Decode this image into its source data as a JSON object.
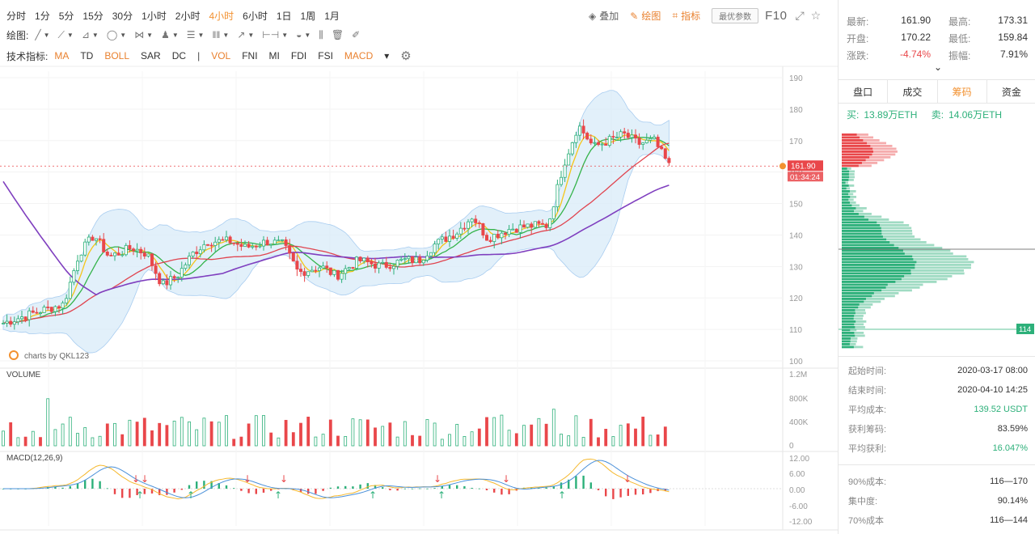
{
  "periods": [
    {
      "label": "分时",
      "active": false
    },
    {
      "label": "1分",
      "active": false
    },
    {
      "label": "5分",
      "active": false
    },
    {
      "label": "15分",
      "active": false
    },
    {
      "label": "30分",
      "active": false
    },
    {
      "label": "1小时",
      "active": false
    },
    {
      "label": "2小时",
      "active": false
    },
    {
      "label": "4小时",
      "active": true
    },
    {
      "label": "6小时",
      "active": false
    },
    {
      "label": "1日",
      "active": false
    },
    {
      "label": "1周",
      "active": false
    },
    {
      "label": "1月",
      "active": false
    }
  ],
  "actions": {
    "overlay": "叠加",
    "draw": "绘图",
    "indicator": "指标",
    "params": "最优参数",
    "f10": "F10"
  },
  "draw_toolbar": {
    "label": "绘图:",
    "tools": [
      "line-tool-icon",
      "ray-tool-icon",
      "channel-tool-icon",
      "circle-tool-icon",
      "fib-tool-icon",
      "pattern-tool-icon",
      "text-tool-icon",
      "bars-tool-icon",
      "arrow-tool-icon",
      "range-tool-icon",
      "note-tool-icon",
      "chart-tool-icon",
      "trash-icon",
      "pen-icon"
    ]
  },
  "indicators_bar": {
    "label": "技术指标:",
    "main": [
      "MA",
      "TD",
      "BOLL",
      "SAR",
      "DC"
    ],
    "sub": [
      "VOL",
      "FNI",
      "MI",
      "FDI",
      "FSI",
      "MACD"
    ],
    "highlighted": [
      "MA",
      "BOLL",
      "VOL",
      "MACD"
    ]
  },
  "watermark": "charts by QKL123",
  "price_axis_ticks": [
    "190",
    "180",
    "170",
    "160",
    "150",
    "140",
    "130",
    "120",
    "110",
    "100"
  ],
  "price_tag": {
    "price": "161.90",
    "countdown": "01:34:24"
  },
  "volume": {
    "label": "VOLUME",
    "ticks": [
      "1.2M",
      "800K",
      "400K",
      "0"
    ]
  },
  "macd": {
    "label": "MACD(12,26,9)",
    "ticks": [
      "12.00",
      "6.00",
      "0.00",
      "-6.00",
      "-12.00"
    ]
  },
  "chip_price_label": "114",
  "colors": {
    "up": "#e9474a",
    "down": "#2db07a",
    "accent": "#f29130",
    "ma_yellow": "#f5c518",
    "ma_green": "#34b34a",
    "ma_red": "#e0444f",
    "ma_purple": "#7f3fbf",
    "boll_fill": "#d6e9f8"
  },
  "chart_data": {
    "type": "candlestick",
    "price_range": [
      100,
      190
    ],
    "price_samples": [
      {
        "x": 0.0,
        "y": 112
      },
      {
        "x": 0.05,
        "y": 116
      },
      {
        "x": 0.08,
        "y": 118
      },
      {
        "x": 0.1,
        "y": 134
      },
      {
        "x": 0.12,
        "y": 140
      },
      {
        "x": 0.14,
        "y": 133
      },
      {
        "x": 0.17,
        "y": 136
      },
      {
        "x": 0.19,
        "y": 134
      },
      {
        "x": 0.21,
        "y": 124
      },
      {
        "x": 0.23,
        "y": 127
      },
      {
        "x": 0.25,
        "y": 134
      },
      {
        "x": 0.27,
        "y": 138
      },
      {
        "x": 0.3,
        "y": 138
      },
      {
        "x": 0.32,
        "y": 136
      },
      {
        "x": 0.35,
        "y": 138
      },
      {
        "x": 0.37,
        "y": 137
      },
      {
        "x": 0.39,
        "y": 128
      },
      {
        "x": 0.42,
        "y": 130
      },
      {
        "x": 0.44,
        "y": 127
      },
      {
        "x": 0.47,
        "y": 132
      },
      {
        "x": 0.5,
        "y": 130
      },
      {
        "x": 0.53,
        "y": 132
      },
      {
        "x": 0.55,
        "y": 132
      },
      {
        "x": 0.57,
        "y": 137
      },
      {
        "x": 0.6,
        "y": 141
      },
      {
        "x": 0.62,
        "y": 146
      },
      {
        "x": 0.64,
        "y": 139
      },
      {
        "x": 0.67,
        "y": 142
      },
      {
        "x": 0.7,
        "y": 143
      },
      {
        "x": 0.72,
        "y": 143
      },
      {
        "x": 0.74,
        "y": 162
      },
      {
        "x": 0.76,
        "y": 175
      },
      {
        "x": 0.78,
        "y": 168
      },
      {
        "x": 0.8,
        "y": 170
      },
      {
        "x": 0.82,
        "y": 172
      },
      {
        "x": 0.84,
        "y": 169
      },
      {
        "x": 0.86,
        "y": 170
      },
      {
        "x": 0.88,
        "y": 162
      }
    ],
    "current_price": 161.9
  },
  "stats": [
    [
      {
        "k": "最新:",
        "v": "161.90",
        "red": false
      },
      {
        "k": "最高:",
        "v": "173.31",
        "red": false
      }
    ],
    [
      {
        "k": "开盘:",
        "v": "170.22",
        "red": false
      },
      {
        "k": "最低:",
        "v": "159.84",
        "red": false
      }
    ],
    [
      {
        "k": "涨跌:",
        "v": "-4.74%",
        "red": true
      },
      {
        "k": "振幅:",
        "v": "7.91%",
        "red": false
      }
    ]
  ],
  "tabs": [
    {
      "label": "盘口",
      "active": false
    },
    {
      "label": "成交",
      "active": false
    },
    {
      "label": "筹码",
      "active": true
    },
    {
      "label": "资金",
      "active": false
    }
  ],
  "buysell": {
    "buy_label": "买:",
    "buy_value": "13.89万ETH",
    "sell_label": "卖:",
    "sell_value": "14.06万ETH"
  },
  "cost_info": [
    {
      "k": "起始时间:",
      "v": "2020-03-17 08:00",
      "green": false
    },
    {
      "k": "结束时间:",
      "v": "2020-04-10 14:25",
      "green": false
    },
    {
      "k": "平均成本:",
      "v": "139.52 USDT",
      "green": true
    },
    {
      "k": "获利筹码:",
      "v": "83.59%",
      "green": false
    },
    {
      "k": "平均获利:",
      "v": "16.047%",
      "green": true
    }
  ],
  "concentration": [
    {
      "k": "90%成本:",
      "v": "116—170"
    },
    {
      "k": "集中度:",
      "v": "90.14%"
    },
    {
      "k": "70%成本",
      "v": "116—144"
    }
  ]
}
